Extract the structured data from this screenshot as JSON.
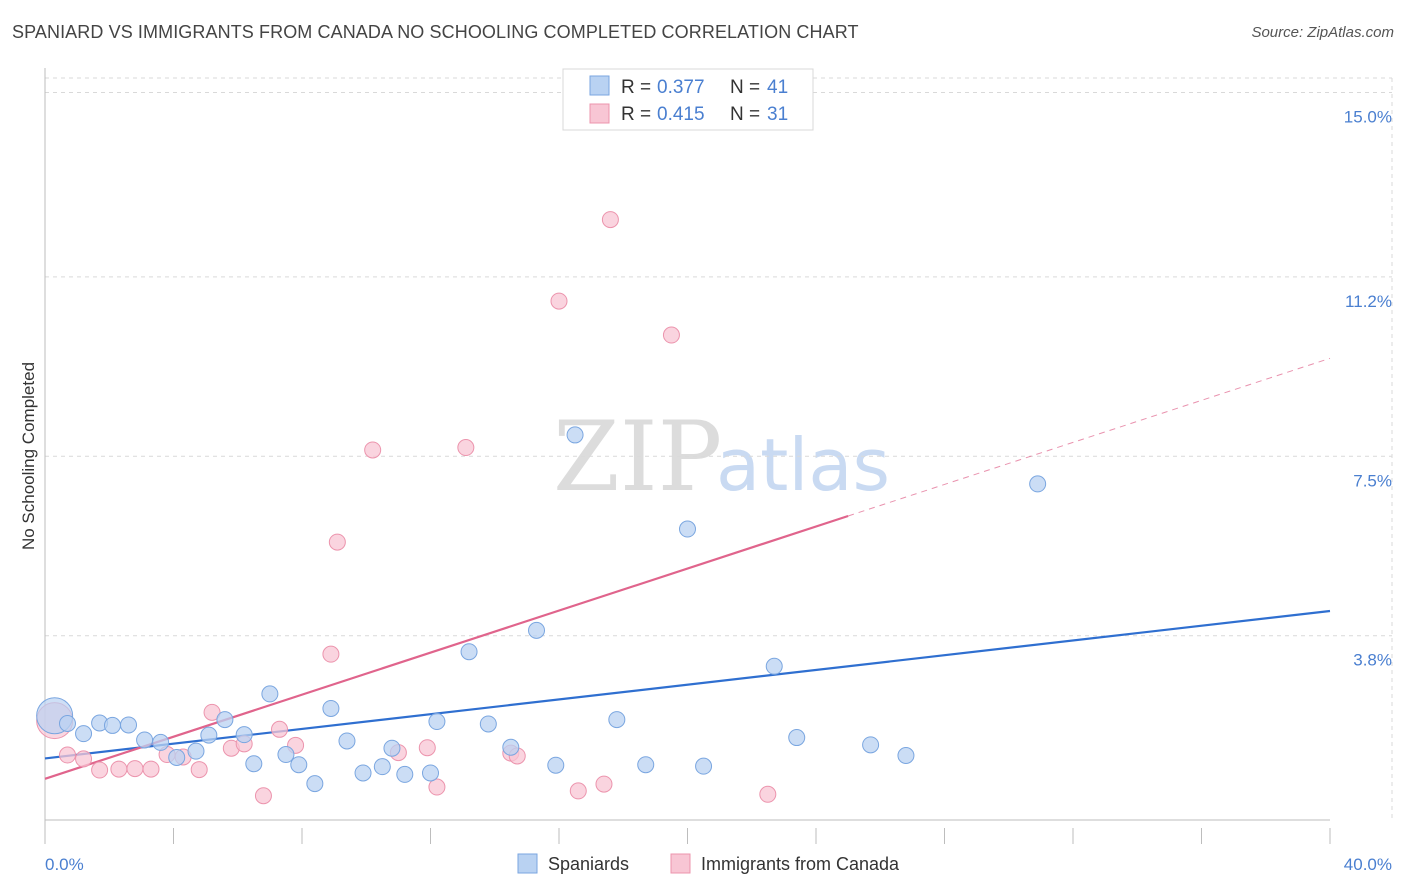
{
  "title": "SPANIARD VS IMMIGRANTS FROM CANADA NO SCHOOLING COMPLETED CORRELATION CHART",
  "source": "Source: ZipAtlas.com",
  "watermark": {
    "zip": "ZIP",
    "atlas": "atlas"
  },
  "colors": {
    "blue_fill": "#b9d2f2",
    "blue_stroke": "#7aa6e0",
    "blue_line": "#2f6fd0",
    "pink_fill": "#f8c6d4",
    "pink_stroke": "#ec94ad",
    "pink_line": "#e0648c",
    "grid": "#d9d9d9",
    "axis_label": "#4a7fd0"
  },
  "legend": {
    "rows": [
      {
        "r_label": "R =",
        "r_value": "0.377",
        "n_label": "N =",
        "n_value": "41"
      },
      {
        "r_label": "R =",
        "r_value": "0.415",
        "n_label": "N =",
        "n_value": "31"
      }
    ]
  },
  "bottom_legend": [
    "Spaniards",
    "Immigrants from Canada"
  ],
  "chart_data": {
    "type": "scatter",
    "title": "SPANIARD VS IMMIGRANTS FROM CANADA NO SCHOOLING COMPLETED CORRELATION CHART",
    "xlabel": "",
    "ylabel": "No Schooling Completed",
    "xlim": [
      0,
      40
    ],
    "ylim": [
      0,
      15.3
    ],
    "x_tick_labels": [
      "0.0%",
      "40.0%"
    ],
    "y_ticks": [
      3.8,
      7.5,
      11.2,
      15.0
    ],
    "y_tick_labels": [
      "3.8%",
      "7.5%",
      "11.2%",
      "15.0%"
    ],
    "x_minor_ticks": [
      4,
      8,
      12,
      16,
      20,
      24,
      28,
      32,
      36,
      40
    ],
    "grid": true,
    "legend_position": "top-center",
    "series": [
      {
        "name": "Spaniards",
        "r": 0.377,
        "n": 41,
        "trend": {
          "x": [
            0,
            40
          ],
          "y": [
            1.27,
            4.31
          ]
        },
        "points": [
          {
            "x": 0.3,
            "y": 2.15,
            "big": true
          },
          {
            "x": 0.7,
            "y": 1.99
          },
          {
            "x": 1.2,
            "y": 1.78
          },
          {
            "x": 1.7,
            "y": 2.0
          },
          {
            "x": 2.1,
            "y": 1.95
          },
          {
            "x": 2.6,
            "y": 1.96
          },
          {
            "x": 3.1,
            "y": 1.65
          },
          {
            "x": 3.6,
            "y": 1.6
          },
          {
            "x": 4.1,
            "y": 1.29
          },
          {
            "x": 4.7,
            "y": 1.42
          },
          {
            "x": 5.1,
            "y": 1.75
          },
          {
            "x": 5.6,
            "y": 2.07
          },
          {
            "x": 6.2,
            "y": 1.76
          },
          {
            "x": 6.5,
            "y": 1.16
          },
          {
            "x": 7.0,
            "y": 2.6
          },
          {
            "x": 7.5,
            "y": 1.35
          },
          {
            "x": 7.9,
            "y": 1.14
          },
          {
            "x": 8.4,
            "y": 0.75
          },
          {
            "x": 8.9,
            "y": 2.3
          },
          {
            "x": 9.4,
            "y": 1.63
          },
          {
            "x": 9.9,
            "y": 0.97
          },
          {
            "x": 10.5,
            "y": 1.1
          },
          {
            "x": 10.8,
            "y": 1.48
          },
          {
            "x": 11.2,
            "y": 0.94
          },
          {
            "x": 12.0,
            "y": 0.97
          },
          {
            "x": 12.2,
            "y": 2.03
          },
          {
            "x": 13.2,
            "y": 3.47
          },
          {
            "x": 13.8,
            "y": 1.98
          },
          {
            "x": 14.5,
            "y": 1.5
          },
          {
            "x": 15.3,
            "y": 3.91
          },
          {
            "x": 15.9,
            "y": 1.13
          },
          {
            "x": 16.5,
            "y": 7.94
          },
          {
            "x": 17.8,
            "y": 2.07
          },
          {
            "x": 18.7,
            "y": 1.14
          },
          {
            "x": 20.0,
            "y": 6.0
          },
          {
            "x": 20.5,
            "y": 1.11
          },
          {
            "x": 22.7,
            "y": 3.17
          },
          {
            "x": 23.4,
            "y": 1.7
          },
          {
            "x": 25.7,
            "y": 1.55
          },
          {
            "x": 26.8,
            "y": 1.33
          },
          {
            "x": 30.9,
            "y": 6.93
          }
        ]
      },
      {
        "name": "Immigrants from Canada",
        "r": 0.415,
        "n": 31,
        "trend": {
          "x": [
            0,
            40
          ],
          "y": [
            0.85,
            9.52
          ],
          "solid_until_x": 25
        },
        "points": [
          {
            "x": 0.3,
            "y": 2.05,
            "big": true
          },
          {
            "x": 0.7,
            "y": 1.34
          },
          {
            "x": 1.2,
            "y": 1.26
          },
          {
            "x": 1.7,
            "y": 1.03
          },
          {
            "x": 2.3,
            "y": 1.05
          },
          {
            "x": 2.8,
            "y": 1.06
          },
          {
            "x": 3.3,
            "y": 1.05
          },
          {
            "x": 3.8,
            "y": 1.35
          },
          {
            "x": 4.3,
            "y": 1.3
          },
          {
            "x": 4.8,
            "y": 1.04
          },
          {
            "x": 5.2,
            "y": 2.22
          },
          {
            "x": 5.8,
            "y": 1.48
          },
          {
            "x": 6.2,
            "y": 1.57
          },
          {
            "x": 6.8,
            "y": 0.5
          },
          {
            "x": 7.3,
            "y": 1.87
          },
          {
            "x": 7.8,
            "y": 1.54
          },
          {
            "x": 8.9,
            "y": 3.42
          },
          {
            "x": 9.1,
            "y": 5.73
          },
          {
            "x": 10.2,
            "y": 7.63
          },
          {
            "x": 11.0,
            "y": 1.39
          },
          {
            "x": 11.9,
            "y": 1.49
          },
          {
            "x": 12.2,
            "y": 0.68
          },
          {
            "x": 13.1,
            "y": 7.68
          },
          {
            "x": 14.5,
            "y": 1.38
          },
          {
            "x": 14.7,
            "y": 1.32
          },
          {
            "x": 16.0,
            "y": 10.7
          },
          {
            "x": 16.6,
            "y": 0.6
          },
          {
            "x": 17.4,
            "y": 0.74
          },
          {
            "x": 17.6,
            "y": 12.38
          },
          {
            "x": 19.5,
            "y": 10.0
          },
          {
            "x": 22.5,
            "y": 0.53
          }
        ]
      }
    ]
  }
}
